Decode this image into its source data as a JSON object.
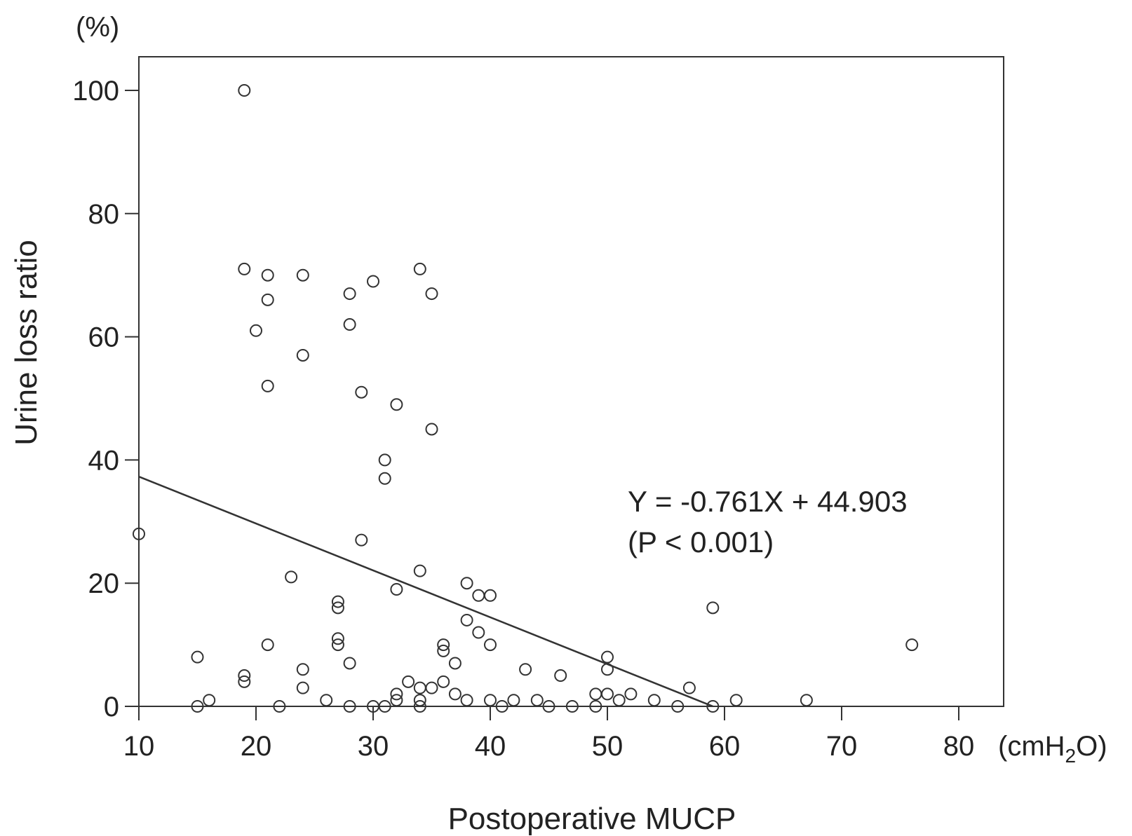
{
  "chart_data": {
    "type": "scatter",
    "xlabel": "Postoperative MUCP",
    "ylabel": "Urine loss ratio",
    "x_unit_prefix": "(cmH",
    "x_unit_subscript": "2",
    "x_unit_suffix": "O)",
    "y_unit": "(%)",
    "xlim": [
      10,
      83
    ],
    "ylim": [
      0,
      105
    ],
    "x_ticks": [
      10,
      20,
      30,
      40,
      50,
      60,
      70,
      80
    ],
    "y_ticks": [
      0,
      20,
      40,
      60,
      80,
      100
    ],
    "grid": false,
    "regression": {
      "slope": -0.761,
      "intercept": 44.903,
      "x_range": [
        10,
        59
      ],
      "equation_label": "Y = -0.761X + 44.903",
      "p_label": "(P < 0.001)"
    },
    "points": [
      [
        19,
        100
      ],
      [
        19,
        71
      ],
      [
        21,
        70
      ],
      [
        24,
        70
      ],
      [
        34,
        71
      ],
      [
        30,
        69
      ],
      [
        21,
        66
      ],
      [
        28,
        67
      ],
      [
        35,
        67
      ],
      [
        20,
        61
      ],
      [
        28,
        62
      ],
      [
        24,
        57
      ],
      [
        21,
        52
      ],
      [
        29,
        51
      ],
      [
        32,
        49
      ],
      [
        35,
        45
      ],
      [
        31,
        40
      ],
      [
        31,
        37
      ],
      [
        10,
        28
      ],
      [
        29,
        27
      ],
      [
        34,
        22
      ],
      [
        23,
        21
      ],
      [
        38,
        20
      ],
      [
        32,
        19
      ],
      [
        39,
        18
      ],
      [
        40,
        18
      ],
      [
        27,
        17
      ],
      [
        27,
        16
      ],
      [
        59,
        16
      ],
      [
        38,
        14
      ],
      [
        39,
        12
      ],
      [
        27,
        11
      ],
      [
        27,
        10
      ],
      [
        21,
        10
      ],
      [
        36,
        10
      ],
      [
        40,
        10
      ],
      [
        76,
        10
      ],
      [
        36,
        9
      ],
      [
        15,
        8
      ],
      [
        50,
        8
      ],
      [
        28,
        7
      ],
      [
        37,
        7
      ],
      [
        24,
        6
      ],
      [
        43,
        6
      ],
      [
        50,
        6
      ],
      [
        19,
        5
      ],
      [
        46,
        5
      ],
      [
        19,
        4
      ],
      [
        33,
        4
      ],
      [
        36,
        4
      ],
      [
        24,
        3
      ],
      [
        34,
        3
      ],
      [
        35,
        3
      ],
      [
        57,
        3
      ],
      [
        32,
        2
      ],
      [
        37,
        2
      ],
      [
        49,
        2
      ],
      [
        50,
        2
      ],
      [
        52,
        2
      ],
      [
        16,
        1
      ],
      [
        26,
        1
      ],
      [
        32,
        1
      ],
      [
        34,
        1
      ],
      [
        38,
        1
      ],
      [
        40,
        1
      ],
      [
        42,
        1
      ],
      [
        44,
        1
      ],
      [
        51,
        1
      ],
      [
        54,
        1
      ],
      [
        61,
        1
      ],
      [
        67,
        1
      ],
      [
        15,
        0
      ],
      [
        22,
        0
      ],
      [
        28,
        0
      ],
      [
        30,
        0
      ],
      [
        31,
        0
      ],
      [
        34,
        0
      ],
      [
        41,
        0
      ],
      [
        45,
        0
      ],
      [
        47,
        0
      ],
      [
        49,
        0
      ],
      [
        56,
        0
      ],
      [
        59,
        0
      ]
    ]
  }
}
